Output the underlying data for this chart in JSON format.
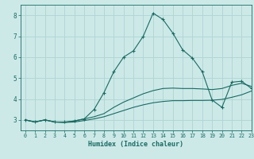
{
  "xlabel": "Humidex (Indice chaleur)",
  "xlim": [
    -0.5,
    23
  ],
  "ylim": [
    2.5,
    8.5
  ],
  "xticks": [
    0,
    1,
    2,
    3,
    4,
    5,
    6,
    7,
    8,
    9,
    10,
    11,
    12,
    13,
    14,
    15,
    16,
    17,
    18,
    19,
    20,
    21,
    22,
    23
  ],
  "yticks": [
    3,
    4,
    5,
    6,
    7,
    8
  ],
  "background_color": "#cce9e8",
  "grid_color": "#aed4d2",
  "line_color": "#1a6b62",
  "curve1_x": [
    0,
    1,
    2,
    3,
    4,
    5,
    6,
    7,
    8,
    9,
    10,
    11,
    12,
    13,
    14,
    15,
    16,
    17,
    18,
    19,
    20,
    21,
    22,
    23
  ],
  "curve1_y": [
    3.0,
    2.9,
    3.0,
    2.9,
    2.9,
    2.95,
    3.05,
    3.5,
    4.3,
    5.3,
    6.0,
    6.3,
    7.0,
    8.1,
    7.8,
    7.15,
    6.35,
    5.95,
    5.3,
    3.95,
    3.6,
    4.8,
    4.85,
    4.5
  ],
  "curve2_x": [
    0,
    1,
    2,
    3,
    4,
    5,
    6,
    7,
    8,
    9,
    10,
    11,
    12,
    13,
    14,
    15,
    16,
    17,
    18,
    19,
    20,
    21,
    22,
    23
  ],
  "curve2_y": [
    3.0,
    2.9,
    3.0,
    2.9,
    2.88,
    2.95,
    3.05,
    3.15,
    3.3,
    3.6,
    3.85,
    4.05,
    4.25,
    4.4,
    4.5,
    4.52,
    4.5,
    4.5,
    4.48,
    4.45,
    4.5,
    4.65,
    4.75,
    4.6
  ],
  "curve3_x": [
    0,
    1,
    2,
    3,
    4,
    5,
    6,
    7,
    8,
    9,
    10,
    11,
    12,
    13,
    14,
    15,
    16,
    17,
    18,
    19,
    20,
    21,
    22,
    23
  ],
  "curve3_y": [
    3.0,
    2.9,
    3.0,
    2.9,
    2.88,
    2.9,
    2.97,
    3.05,
    3.15,
    3.3,
    3.45,
    3.6,
    3.72,
    3.82,
    3.88,
    3.92,
    3.92,
    3.93,
    3.93,
    3.94,
    3.98,
    4.08,
    4.2,
    4.38
  ]
}
